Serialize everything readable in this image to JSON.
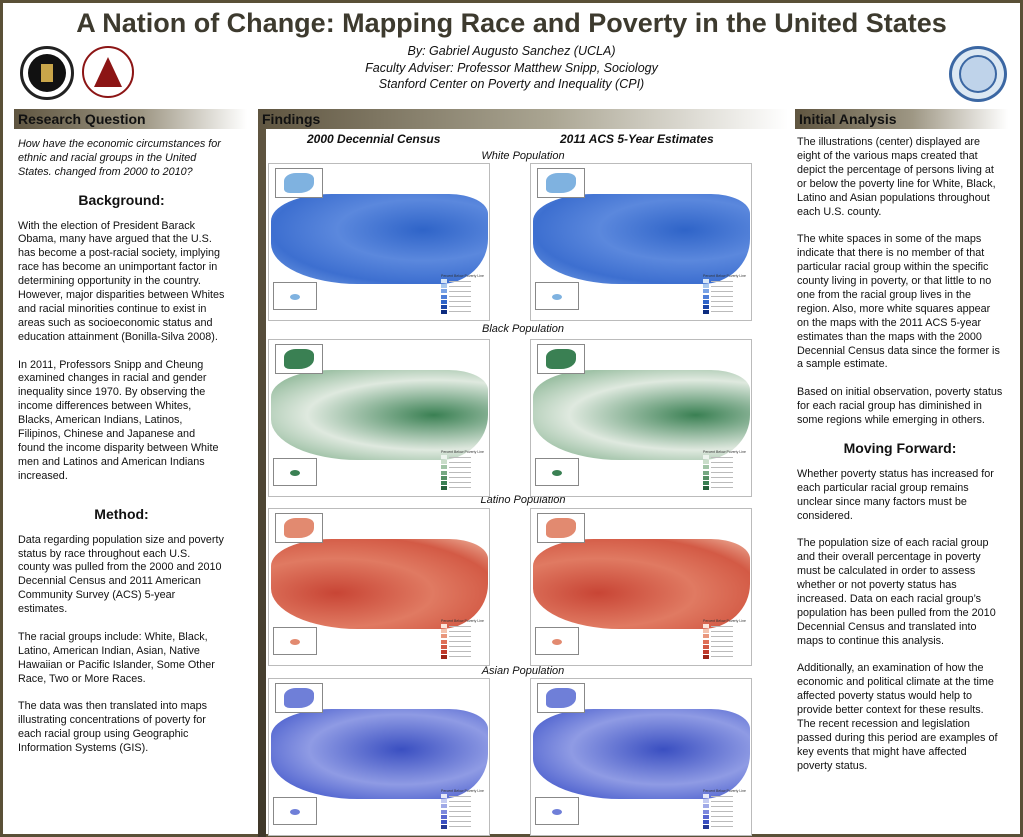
{
  "header": {
    "title": "A Nation of Change: Mapping Race and Poverty in the United States",
    "author": "By: Gabriel Augusto Sanchez (UCLA)",
    "adviser": "Faculty Adviser: Professor Matthew Snipp, Sociology",
    "center": "Stanford Center on Poverty and Inequality (CPI)"
  },
  "sections": {
    "research_question": "Research Question",
    "findings": "Findings",
    "initial_analysis": "Initial Analysis"
  },
  "left": {
    "question": "How have the economic circumstances for ethnic and racial groups in the United States. changed from 2000 to 2010?",
    "background_heading": "Background:",
    "background_p1": "With the election of President Barack Obama, many have argued that the U.S. has become a post-racial society, implying race has become an unimportant factor in determining opportunity in the country. However, major disparities between Whites and racial minorities continue to exist in areas such as socioeconomic status and education attainment  (Bonilla-Silva 2008).",
    "background_p2": "In 2011, Professors Snipp and Cheung examined changes in racial and gender inequality since 1970. By observing the income differences between Whites, Blacks, American Indians, Latinos, Filipinos, Chinese and Japanese and found the income disparity between White men and Latinos and American Indians increased.",
    "method_heading": "Method:",
    "method_p1": "Data regarding population size and poverty status by race throughout each U.S. county was pulled from the 2000 and 2010 Decennial Census and 2011 American Community Survey (ACS) 5-year estimates.",
    "method_p2": "The racial groups include: White, Black, Latino, American Indian, Asian, Native Hawaiian or Pacific Islander, Some Other Race, Two or More Races.",
    "method_p3": "The data was then translated into maps illustrating concentrations of poverty for each racial group using Geographic Information Systems (GIS)."
  },
  "findings": {
    "col_2000": "2000 Decennial Census",
    "col_2011": "2011 ACS 5-Year Estimates",
    "populations": [
      "White Population",
      "Black Population",
      "Latino Population",
      "Asian Population"
    ]
  },
  "right": {
    "p1": "The illustrations (center) displayed are eight of the various maps created that depict the percentage of persons living at or below the poverty line for White, Black, Latino and Asian populations throughout each U.S. county.",
    "p2": "The white spaces in some of the maps indicate that there is no member of that particular racial group within the specific county living in poverty, or that little to no one from the racial group lives in the region. Also, more white squares appear on the maps with the 2011 ACS 5-year estimates than the maps with the 2000 Decennial Census data since the former is a sample estimate.",
    "p3": "Based on initial observation, poverty status for each racial group has diminished in some regions while emerging in others.",
    "moving_heading": "Moving Forward:",
    "p4": "Whether poverty status has increased for each particular racial group remains unclear since many factors must be considered.",
    "p5": "The population size of each racial group and their overall percentage in poverty must be calculated in order to assess whether or not poverty status has increased. Data on each racial group’s population has been pulled from the 2010 Decennial Census and translated into maps to continue this analysis.",
    "p6": "Additionally, an examination of how the economic and political climate at the time affected poverty status would help to provide better context for these results. The recent recession and legislation passed during this period are examples of key events that might have affected poverty status."
  },
  "legend": {
    "title": "Percent Below Poverty Line"
  },
  "colors": {
    "white": [
      "#d6e6f7",
      "#a8c8ee",
      "#7aa3e5",
      "#4f7fd8",
      "#2f64c8",
      "#1a45a8",
      "#0d2c80"
    ],
    "black": [
      "#edf4ee",
      "#c9ddc9",
      "#a1c4a6",
      "#77a983",
      "#558f64",
      "#3a8053",
      "#25603a"
    ],
    "latino": [
      "#fbe6dc",
      "#f3c2ad",
      "#e9977d",
      "#df6f57",
      "#d35a45",
      "#c0392b",
      "#9c2418"
    ],
    "asian": [
      "#e6e9f8",
      "#c4cbf1",
      "#a0aae7",
      "#7d89dd",
      "#5a68d1",
      "#3a4fc1",
      "#253896"
    ]
  }
}
